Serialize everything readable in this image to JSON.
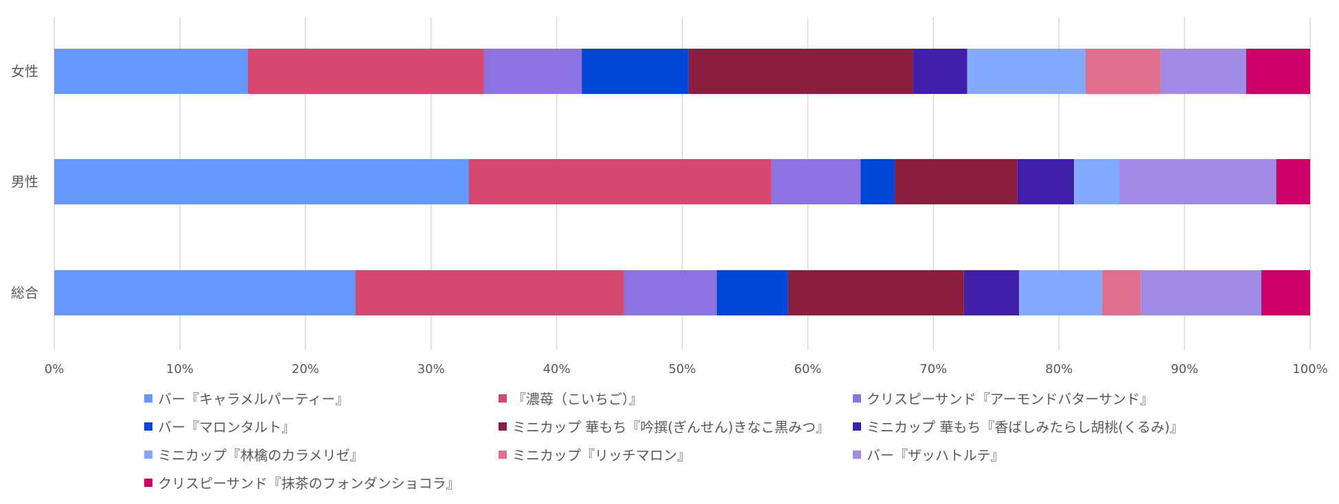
{
  "chart_data": {
    "type": "bar",
    "orientation": "horizontal",
    "stacked": "percent",
    "categories": [
      "女性",
      "男性",
      "総合"
    ],
    "xlim": [
      0,
      100
    ],
    "x_ticks": [
      "0%",
      "10%",
      "20%",
      "30%",
      "40%",
      "50%",
      "60%",
      "70%",
      "80%",
      "90%",
      "100%"
    ],
    "grid": true,
    "legend_position": "bottom",
    "series": [
      {
        "name": "バー『キャラメルパーティー』",
        "color": "#6699FF",
        "values": [
          15.4,
          33.0,
          24.0
        ]
      },
      {
        "name": "『濃苺（こいちご）』",
        "color": "#D44870",
        "values": [
          18.8,
          24.1,
          21.4
        ]
      },
      {
        "name": "クリスピーサンド『アーモンドバターサンド』",
        "color": "#8B74E2",
        "values": [
          7.8,
          7.1,
          7.4
        ]
      },
      {
        "name": "バー『マロンタルト』",
        "color": "#0047D8",
        "values": [
          8.5,
          2.7,
          5.7
        ]
      },
      {
        "name": "ミニカップ 華もち『吟撰(ぎんせん)きなこ黒みつ』",
        "color": "#8B1F3F",
        "values": [
          17.9,
          9.8,
          14.0
        ]
      },
      {
        "name": "ミニカップ 華もち『香ばしみたらし胡桃(くるみ)』",
        "color": "#4020A8",
        "values": [
          4.3,
          4.5,
          4.4
        ]
      },
      {
        "name": "ミニカップ『林檎のカラメリゼ』",
        "color": "#84AAFF",
        "values": [
          9.4,
          3.6,
          6.6
        ]
      },
      {
        "name": "ミニカップ『リッチマロン』",
        "color": "#E06E8E",
        "values": [
          6.0,
          0.0,
          3.1
        ]
      },
      {
        "name": "バー『ザッハトルテ』",
        "color": "#A08CE6",
        "values": [
          6.8,
          12.5,
          9.6
        ]
      },
      {
        "name": "クリスピーサンド『抹茶のフォンダンショコラ』",
        "color": "#CC0066",
        "values": [
          5.1,
          2.7,
          3.9
        ]
      }
    ]
  }
}
